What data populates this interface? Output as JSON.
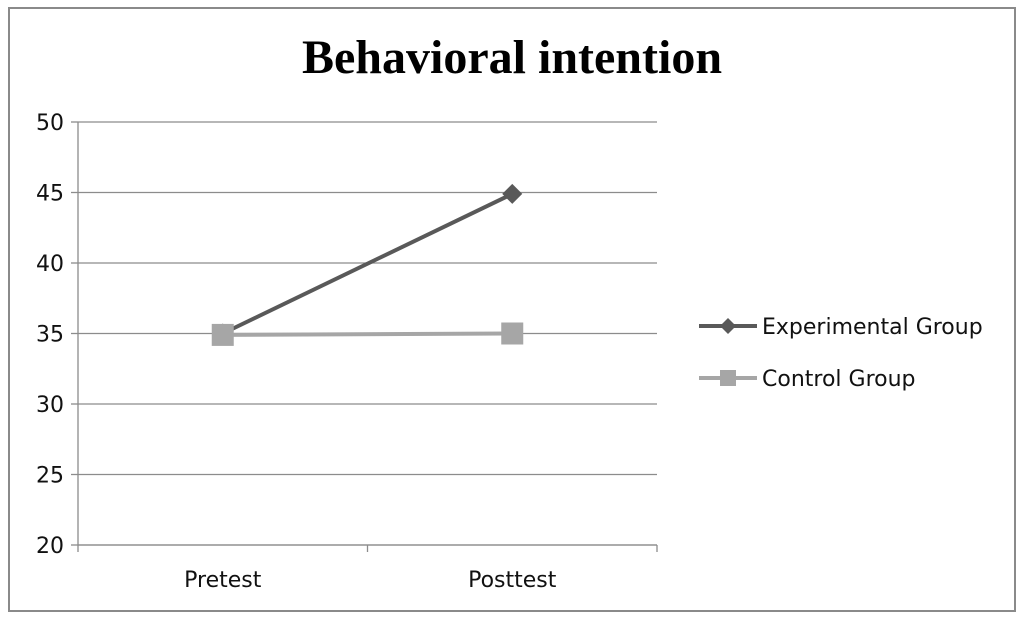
{
  "chart_data": {
    "type": "line",
    "title": "Behavioral intention",
    "categories": [
      "Pretest",
      "Posttest"
    ],
    "series": [
      {
        "name": "Experimental Group",
        "values": [
          35,
          44.9
        ],
        "color": "#595959",
        "marker": "diamond"
      },
      {
        "name": "Control Group",
        "values": [
          34.9,
          35
        ],
        "color": "#a6a6a6",
        "marker": "square"
      }
    ],
    "ylim": [
      20,
      50
    ],
    "yticks": [
      "20",
      "25",
      "30",
      "35",
      "40",
      "45",
      "50"
    ],
    "grid": true,
    "legend_position": "right",
    "xlabel": "",
    "ylabel": ""
  }
}
